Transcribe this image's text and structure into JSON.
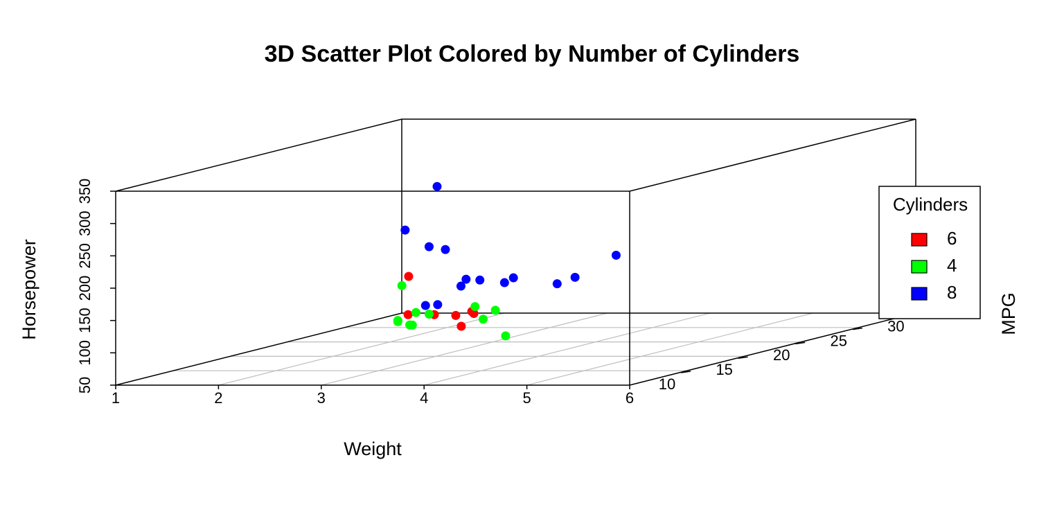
{
  "chart_data": {
    "type": "scatter3d",
    "title": "3D Scatter Plot Colored by Number of Cylinders",
    "x_label": "Weight",
    "y_label": "MPG",
    "z_label": "Horsepower",
    "xlim": [
      1,
      6
    ],
    "xticks": [
      1,
      2,
      3,
      4,
      5,
      6
    ],
    "ylim": [
      10,
      35
    ],
    "yticks": [
      10,
      15,
      20,
      25,
      30
    ],
    "zlim": [
      50,
      350
    ],
    "zticks": [
      50,
      100,
      150,
      200,
      250,
      300,
      350
    ],
    "grid": true,
    "legend_title": "Cylinders",
    "legend_position": "right",
    "series": [
      {
        "name": "6",
        "color": "#ff0000",
        "x": [
          2.62,
          2.875,
          3.215,
          3.46,
          3.44,
          3.44,
          2.77
        ],
        "y": [
          21.0,
          21.0,
          21.4,
          18.1,
          19.2,
          17.8,
          19.7
        ],
        "z": [
          110,
          110,
          110,
          105,
          123,
          123,
          175
        ]
      },
      {
        "name": "4",
        "color": "#00ff00",
        "x": [
          2.32,
          3.19,
          3.15,
          2.2,
          1.615,
          1.835,
          2.465,
          1.935,
          2.14,
          1.513,
          2.78
        ],
        "y": [
          22.8,
          24.4,
          22.8,
          32.4,
          30.4,
          33.9,
          21.5,
          27.3,
          26.0,
          30.4,
          21.4
        ],
        "z": [
          93,
          62,
          95,
          66,
          52,
          65,
          97,
          66,
          91,
          113,
          109
        ]
      },
      {
        "name": "8",
        "color": "#0000ff",
        "x": [
          3.44,
          3.57,
          4.07,
          3.73,
          3.78,
          5.25,
          5.424,
          5.345,
          3.52,
          3.435,
          3.84,
          3.845,
          3.17,
          3.57
        ],
        "y": [
          18.7,
          14.3,
          16.4,
          17.3,
          15.2,
          10.4,
          10.4,
          14.7,
          15.5,
          15.2,
          13.3,
          19.2,
          15.8,
          15.0
        ],
        "z": [
          175,
          245,
          180,
          180,
          180,
          205,
          215,
          230,
          150,
          150,
          245,
          175,
          264,
          335
        ]
      }
    ]
  }
}
